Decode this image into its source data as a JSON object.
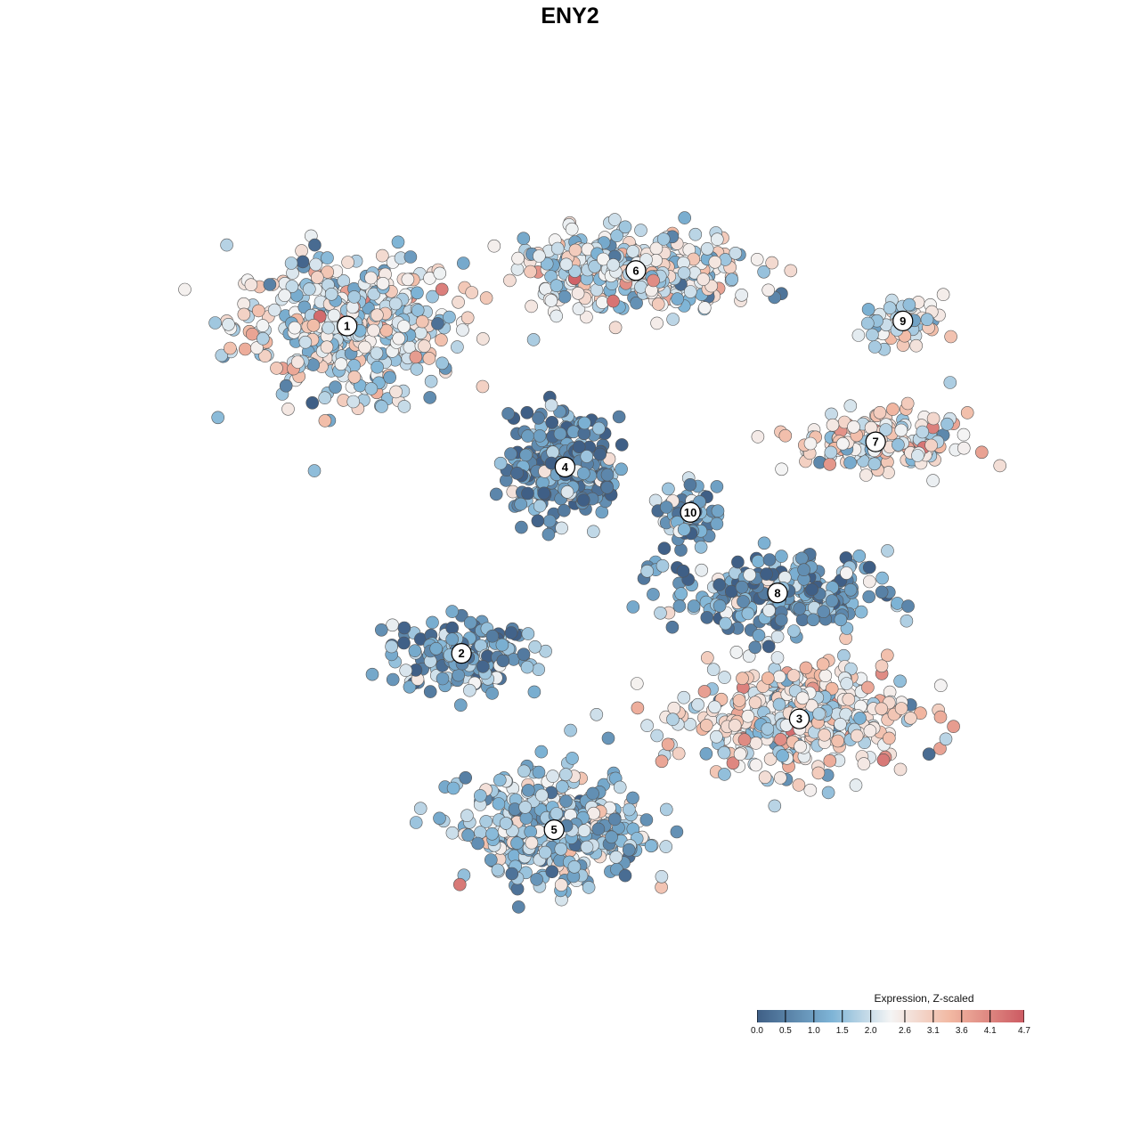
{
  "chart_data": {
    "type": "scatter",
    "title": "ENY2",
    "xlabel": "",
    "ylabel": "",
    "legend": {
      "title": "Expression, Z-scaled",
      "placement": "bottom-right",
      "ticks": [
        0.0,
        0.5,
        1.0,
        1.5,
        2.0,
        2.6,
        3.1,
        3.6,
        4.1,
        4.7
      ],
      "tick_labels": [
        "0.0",
        "0.5",
        "1.0",
        "1.5",
        "2.0",
        "2.6",
        "3.1",
        "3.6",
        "4.1",
        "4.7"
      ],
      "range": [
        0.0,
        4.7
      ]
    },
    "colors": {
      "low": "#3f5f86",
      "mid_low": "#7eb4d6",
      "mid": "#f4f4f4",
      "mid_high": "#f2b9a3",
      "high": "#cc5a62"
    },
    "clusters": [
      {
        "label": "1",
        "x": -22.5,
        "y": 24.0,
        "spread": [
          9.5,
          6.5
        ],
        "mean": 2.1,
        "n": 420
      },
      {
        "label": "2",
        "x": -12.0,
        "y": -8.5,
        "spread": [
          6.0,
          3.2
        ],
        "mean": 0.9,
        "n": 170
      },
      {
        "label": "3",
        "x": 19.0,
        "y": -15.0,
        "spread": [
          9.0,
          5.0
        ],
        "mean": 2.4,
        "n": 420
      },
      {
        "label": "4",
        "x": -2.5,
        "y": 10.0,
        "spread": [
          4.5,
          4.5
        ],
        "mean": 0.7,
        "n": 300
      },
      {
        "label": "5",
        "x": -3.5,
        "y": -26.0,
        "spread": [
          7.5,
          5.0
        ],
        "mean": 1.6,
        "n": 380
      },
      {
        "label": "6",
        "x": 4.0,
        "y": 29.5,
        "spread": [
          10.0,
          3.5
        ],
        "mean": 2.1,
        "n": 330
      },
      {
        "label": "7",
        "x": 26.0,
        "y": 12.5,
        "spread": [
          6.5,
          2.5
        ],
        "mean": 2.4,
        "n": 180
      },
      {
        "label": "8",
        "x": 17.0,
        "y": -2.5,
        "spread": [
          9.0,
          3.5
        ],
        "mean": 0.9,
        "n": 240
      },
      {
        "label": "9",
        "x": 28.5,
        "y": 24.5,
        "spread": [
          3.5,
          2.0
        ],
        "mean": 2.2,
        "n": 60
      },
      {
        "label": "10",
        "x": 9.0,
        "y": 5.5,
        "spread": [
          2.5,
          2.5
        ],
        "mean": 1.0,
        "n": 60
      }
    ],
    "xlim": [
      -38,
      38
    ],
    "ylim": [
      -40,
      40
    ],
    "grid": false
  }
}
